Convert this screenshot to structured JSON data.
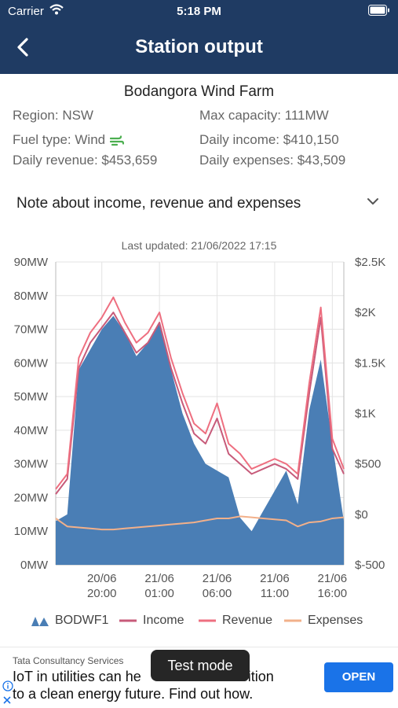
{
  "status_bar": {
    "carrier": "Carrier",
    "time": "5:18 PM"
  },
  "header": {
    "title": "Station output"
  },
  "station": {
    "name": "Bodangora Wind Farm",
    "region": "Region: NSW",
    "max_capacity": "Max capacity: 111MW",
    "fuel_type": "Fuel type: Wind",
    "daily_income": "Daily income: $410,150",
    "daily_revenue": "Daily revenue: $453,659",
    "daily_expenses": "Daily expenses: $43,509"
  },
  "note": {
    "label": "Note about income, revenue and expenses"
  },
  "last_updated": "Last updated: 21/06/2022 17:15",
  "colors": {
    "header": "#1f3b63",
    "output": "#4a7eb5",
    "income": "#c75b7a",
    "revenue": "#ee6f80",
    "expenses": "#f2b08a",
    "ad_button": "#1a73e8"
  },
  "chart_data": {
    "type": "area",
    "x": [
      "20/06 16:00",
      "20/06 17:00",
      "20/06 18:00",
      "20/06 19:00",
      "20/06 20:00",
      "20/06 21:00",
      "20/06 22:00",
      "20/06 23:00",
      "21/06 00:00",
      "21/06 01:00",
      "21/06 02:00",
      "21/06 03:00",
      "21/06 04:00",
      "21/06 05:00",
      "21/06 06:00",
      "21/06 07:00",
      "21/06 08:00",
      "21/06 09:00",
      "21/06 10:00",
      "21/06 11:00",
      "21/06 12:00",
      "21/06 13:00",
      "21/06 14:00",
      "21/06 15:00",
      "21/06 16:00",
      "21/06 17:00"
    ],
    "x_tick_labels": [
      [
        "20/06",
        "20:00"
      ],
      [
        "21/06",
        "01:00"
      ],
      [
        "21/06",
        "06:00"
      ],
      [
        "21/06",
        "11:00"
      ],
      [
        "21/06",
        "16:00"
      ]
    ],
    "y_left": {
      "ticks": [
        "0MW",
        "10MW",
        "20MW",
        "30MW",
        "40MW",
        "50MW",
        "60MW",
        "70MW",
        "80MW",
        "90MW"
      ],
      "range": [
        0,
        90
      ]
    },
    "y_right": {
      "ticks": [
        "$-500",
        "$0",
        "$500",
        "$1K",
        "$1.5K",
        "$2K",
        "$2.5K"
      ],
      "range": [
        -500,
        2500
      ]
    },
    "series": [
      {
        "name": "BODWF1",
        "axis": "left",
        "values": [
          13,
          15,
          58,
          64,
          70,
          74,
          69,
          62,
          66,
          72,
          58,
          45,
          36,
          30,
          28,
          26,
          14,
          10,
          16,
          22,
          28,
          18,
          46,
          61,
          36,
          13
        ]
      },
      {
        "name": "Income",
        "axis": "right",
        "values": [
          200,
          350,
          1450,
          1700,
          1850,
          2000,
          1800,
          1600,
          1700,
          1900,
          1450,
          1100,
          800,
          700,
          950,
          600,
          500,
          400,
          450,
          500,
          450,
          350,
          1200,
          1950,
          650,
          400
        ]
      },
      {
        "name": "Revenue",
        "axis": "right",
        "values": [
          250,
          400,
          1550,
          1800,
          1950,
          2150,
          1900,
          1700,
          1800,
          2000,
          1550,
          1200,
          900,
          800,
          1100,
          700,
          600,
          450,
          500,
          550,
          500,
          400,
          1300,
          2050,
          750,
          450
        ]
      },
      {
        "name": "Expenses",
        "axis": "right",
        "values": [
          -40,
          -120,
          -130,
          -140,
          -150,
          -150,
          -140,
          -130,
          -120,
          -110,
          -100,
          -90,
          -80,
          -60,
          -40,
          -40,
          -20,
          -30,
          -40,
          -50,
          -60,
          -120,
          -80,
          -70,
          -40,
          -30
        ]
      }
    ]
  },
  "ad": {
    "advertiser": "Tata Consultancy Services",
    "line1": "IoT in utilities can he",
    "line1_end": "transition",
    "line2": "to a clean energy future. Find out how.",
    "button": "OPEN"
  },
  "toast": "Test mode"
}
